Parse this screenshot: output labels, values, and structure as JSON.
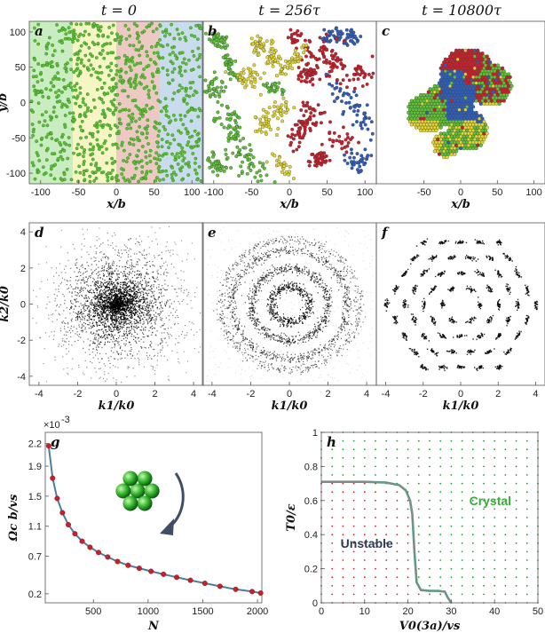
{
  "column_titles": [
    "t = 0",
    "t = 256τ",
    "t = 10800τ"
  ],
  "panel_letters": [
    "a",
    "b",
    "c",
    "d",
    "e",
    "f",
    "g",
    "h"
  ],
  "colors": {
    "green": "#5cc236",
    "yellow": "#e2d52e",
    "red": "#cc1f2a",
    "blue": "#2f5fbe",
    "band_green": "#c9ecc0",
    "band_yellow": "#f6f5c4",
    "band_red": "#ecc9c2",
    "band_blue": "#c9dced",
    "curve": "#4a7fa0",
    "curve_h": "#5a9a86",
    "marker_g": "#c8202a",
    "lattice_green": "#2a9a3a",
    "lattice_red": "#c82a2a",
    "arrow": "#3f4e66"
  },
  "chart_data": [
    {
      "id": "a",
      "type": "scatter",
      "title": "t = 0",
      "xlabel": "x/b",
      "ylabel": "y/b",
      "xlim": [
        -115,
        115
      ],
      "ylim": [
        -115,
        115
      ],
      "xticks": [
        "-100",
        "-50",
        "0",
        "50",
        "100"
      ],
      "yticks": [
        "100",
        "50",
        "0",
        "-50",
        "-100"
      ],
      "bands_x": [
        [
          -115,
          -57.5
        ],
        [
          -57.5,
          0
        ],
        [
          0,
          57.5
        ],
        [
          57.5,
          115
        ]
      ]
    },
    {
      "id": "b",
      "type": "scatter",
      "title": "t = 256τ",
      "xlabel": "x/b",
      "xlim": [
        -115,
        115
      ],
      "ylim": [
        -115,
        115
      ],
      "xticks": [
        "-100",
        "-50",
        "0",
        "50",
        "100"
      ]
    },
    {
      "id": "c",
      "type": "scatter",
      "title": "t = 10800τ",
      "xlabel": "x/b",
      "xlim": [
        -115,
        115
      ],
      "ylim": [
        -115,
        115
      ],
      "xticks": [
        "-50",
        "0",
        "50",
        "100"
      ]
    },
    {
      "id": "d",
      "type": "heatmap",
      "xlabel": "k1/k0",
      "ylabel": "k2/k0",
      "xlim": [
        -4.5,
        4.5
      ],
      "ylim": [
        -4.5,
        4.5
      ],
      "xticks": [
        "-4",
        "-2",
        "0",
        "2",
        "4"
      ],
      "yticks": [
        "4",
        "2",
        "0",
        "-2",
        "-4"
      ]
    },
    {
      "id": "e",
      "type": "heatmap",
      "xlabel": "k1/k0",
      "xlim": [
        -4.5,
        4.5
      ],
      "ylim": [
        -4.5,
        4.5
      ],
      "xticks": [
        "-4",
        "-2",
        "0",
        "2",
        "4"
      ],
      "ring_radii": [
        1.0,
        2.0,
        3.0,
        3.6
      ]
    },
    {
      "id": "f",
      "type": "heatmap",
      "xlabel": "k1/k0",
      "xlim": [
        -4.5,
        4.5
      ],
      "ylim": [
        -4.5,
        4.5
      ],
      "xticks": [
        "-4",
        "-2",
        "0",
        "2",
        "4"
      ]
    },
    {
      "id": "g",
      "type": "line",
      "xlabel": "N",
      "ylabel": "Ωc b/vs",
      "exponent_label": "×10",
      "exponent_power": "-3",
      "xlim": [
        60,
        2040
      ],
      "ylim": [
        0.08,
        2.35
      ],
      "xticks": [
        "500",
        "1000",
        "1500",
        "2000"
      ],
      "yticks": [
        "2.2",
        "1.9",
        "1.5",
        "1.1",
        "0.7",
        "0.2"
      ],
      "x": [
        91,
        127,
        169,
        217,
        271,
        331,
        397,
        469,
        547,
        631,
        721,
        817,
        919,
        1027,
        1141,
        1261,
        1387,
        1519,
        1657,
        1801,
        1951,
        2029
      ],
      "y": [
        2.17,
        1.74,
        1.47,
        1.28,
        1.12,
        1.0,
        0.9,
        0.82,
        0.75,
        0.69,
        0.63,
        0.58,
        0.54,
        0.5,
        0.46,
        0.42,
        0.38,
        0.34,
        0.3,
        0.26,
        0.23,
        0.21
      ]
    },
    {
      "id": "h",
      "type": "scatter",
      "xlabel": "V0(3a)/vs",
      "ylabel": "T0/ε",
      "xlim": [
        0,
        50
      ],
      "ylim": [
        0,
        1
      ],
      "xticks": [
        "0",
        "10",
        "20",
        "30",
        "40",
        "50"
      ],
      "yticks": [
        "1",
        "0.8",
        "0.6",
        "0.4",
        "0.2",
        "0"
      ],
      "region_labels": [
        "Unstable",
        "Crystal"
      ],
      "boundary_x": [
        0,
        10,
        15,
        18,
        19.5,
        20.5,
        21,
        21.5,
        22,
        23,
        25,
        27,
        28.5,
        29.2,
        30
      ],
      "boundary_y": [
        0.71,
        0.71,
        0.705,
        0.69,
        0.66,
        0.6,
        0.52,
        0.3,
        0.12,
        0.075,
        0.07,
        0.07,
        0.065,
        0.03,
        0.0
      ]
    }
  ]
}
